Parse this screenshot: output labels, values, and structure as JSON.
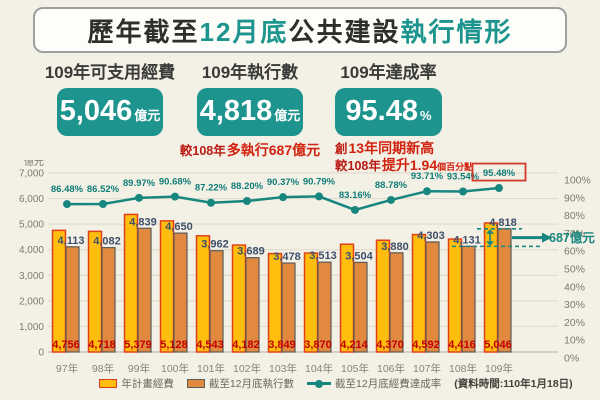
{
  "title": {
    "part1": "歷年截至",
    "part2": "12月底",
    "part3": "公共建設",
    "part4": "執行情形"
  },
  "stats": [
    {
      "heading": "109年可支用經費",
      "value": "5,046",
      "unit": "億元"
    },
    {
      "heading": "109年執行數",
      "value": "4,818",
      "unit": "億元",
      "note_prefix": "較108年",
      "note_bold": "多執行687億元"
    },
    {
      "heading": "109年達成率",
      "value": "95.48",
      "unit": "%",
      "note1_prefix": "創",
      "note1_bold": "13年同期新高",
      "note2_prefix": "較108年",
      "note2_bold": "提升1.94",
      "note2_suffix": "個百分點"
    }
  ],
  "colors": {
    "teal": "#1D948D",
    "red_note": "#C00000",
    "background": "#F3F0E6"
  },
  "chart_data": {
    "type": "bar",
    "subtype": "grouped-bars-with-line",
    "categories": [
      "97年",
      "98年",
      "99年",
      "100年",
      "101年",
      "102年",
      "103年",
      "104年",
      "105年",
      "106年",
      "107年",
      "108年",
      "109年"
    ],
    "series": [
      {
        "name": "年計畫經費",
        "type": "bar",
        "values": [
          4756,
          4718,
          5379,
          5128,
          4543,
          4182,
          3849,
          3870,
          4214,
          4370,
          4592,
          4416,
          5046
        ],
        "color": "#FFBE0D",
        "border": "#E2401A",
        "label_color": "#C00000"
      },
      {
        "name": "截至12月底執行數",
        "type": "bar",
        "values": [
          4113,
          4082,
          4839,
          4650,
          3962,
          3689,
          3478,
          3513,
          3504,
          3880,
          4303,
          4131,
          4818
        ],
        "color": "#E0893F",
        "border": "#5A5A5A",
        "label_color": "#3D4F6B"
      },
      {
        "name": "截至12月底經費達成率",
        "type": "line",
        "values": [
          86.48,
          86.52,
          89.97,
          90.68,
          87.22,
          88.2,
          90.37,
          90.79,
          83.16,
          88.78,
          93.71,
          93.54,
          95.48
        ],
        "color": "#17867F",
        "label_color": "#0F7D77"
      }
    ],
    "left_axis": {
      "label": "億元",
      "min": 0,
      "max": 7000,
      "step": 1000
    },
    "right_axis": {
      "min": 0,
      "max": 100,
      "step": 10,
      "suffix": "%"
    },
    "annotation": {
      "text": "687億元",
      "from_index": 11,
      "to_index": 12,
      "highlight_last": true
    },
    "grid": true,
    "legend_position": "bottom",
    "source_note": "(資料時間:110年1月18日)"
  }
}
